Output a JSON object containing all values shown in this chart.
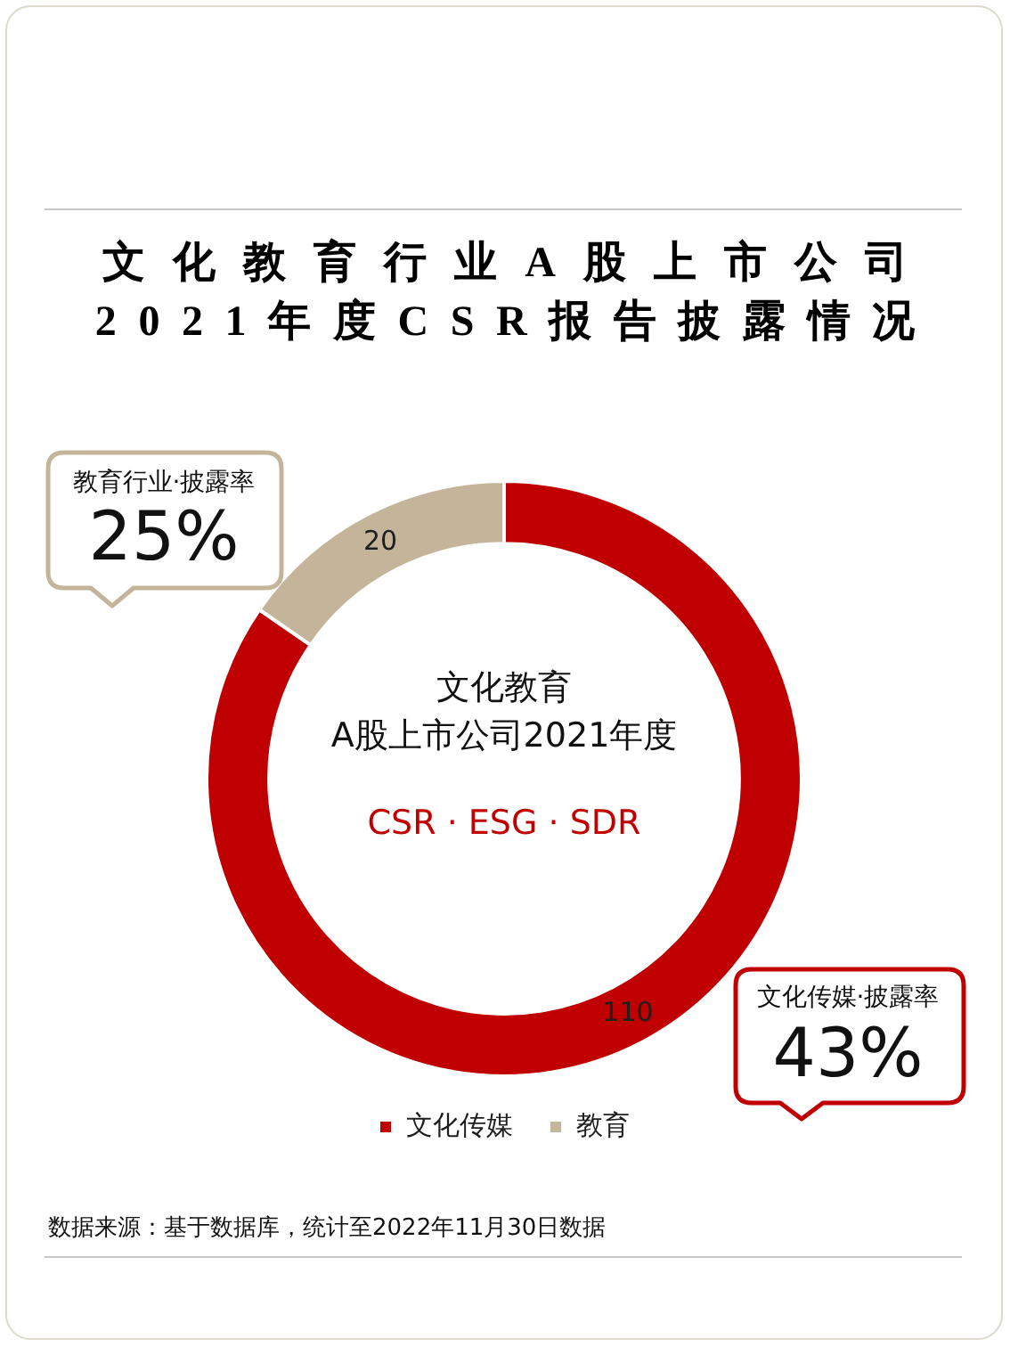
{
  "chart_data": {
    "type": "donut",
    "title": "文化教育行业A股上市公司",
    "subtitle": "2021年度CSR报告披露情况",
    "categories": [
      "文化传媒",
      "教育"
    ],
    "values": [
      110,
      20
    ],
    "colors": [
      "#c00000",
      "#c4b59a"
    ],
    "data_labels": true,
    "legend": "bottom",
    "annotations": [
      "教育行业·披露率",
      "25%",
      "文化传媒·披露率",
      "43%",
      "文化教育",
      "A股上市公司2021年度",
      "CSR · ESG · SDR",
      "数据来源：基于数据库，统计至2022年11月30日数据"
    ]
  }
}
